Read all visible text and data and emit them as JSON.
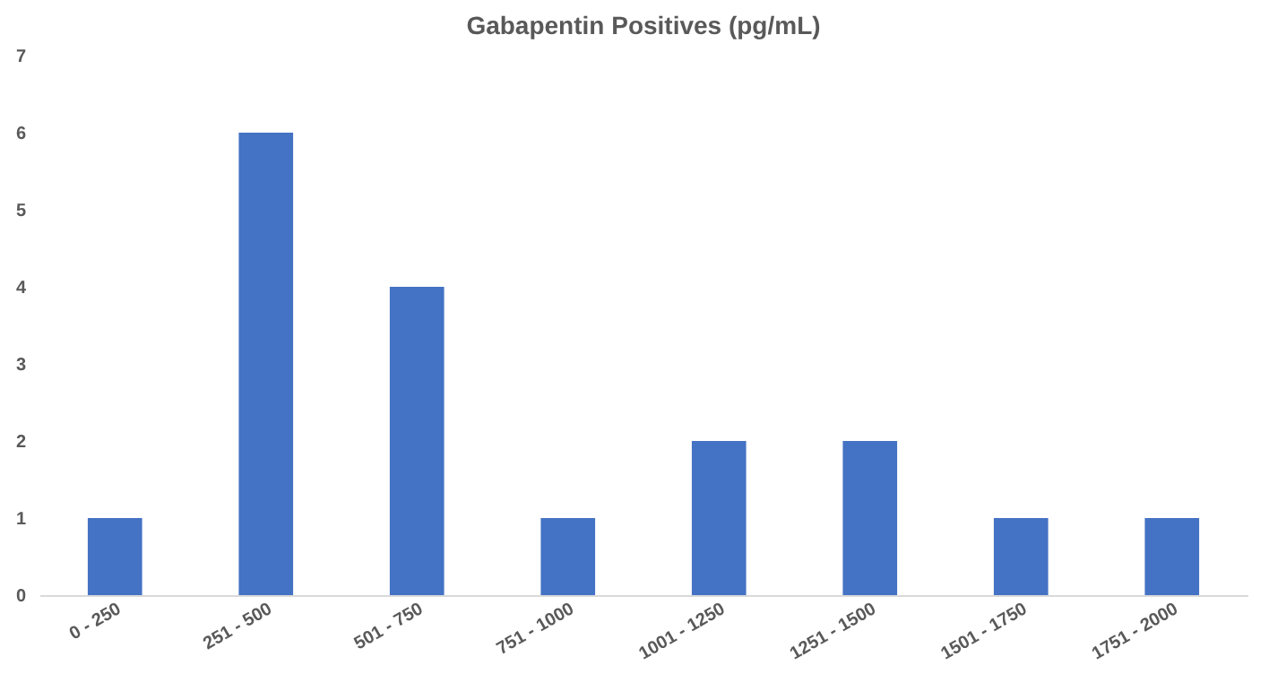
{
  "chart_data": {
    "type": "bar",
    "title": "Gabapentin Positives (pg/mL)",
    "categories": [
      "0 - 250",
      "251 - 500",
      "501 - 750",
      "751 - 1000",
      "1001 - 1250",
      "1251 - 1500",
      "1501 - 1750",
      "1751 - 2000"
    ],
    "values": [
      1,
      6,
      4,
      1,
      2,
      2,
      1,
      1
    ],
    "color": "#4472c4",
    "ylim": [
      0,
      7
    ],
    "yticks": [
      0,
      1,
      2,
      3,
      4,
      5,
      6,
      7
    ],
    "grid": false
  }
}
